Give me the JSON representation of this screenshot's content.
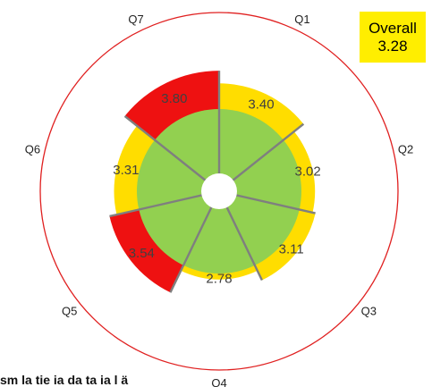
{
  "chart_data": {
    "type": "polar-area",
    "categories": [
      "Q1",
      "Q2",
      "Q3",
      "Q4",
      "Q5",
      "Q6",
      "Q7"
    ],
    "values": [
      3.4,
      3.02,
      3.11,
      2.78,
      3.54,
      3.31,
      3.8
    ],
    "value_labels": [
      "3.40",
      "3.02",
      "3.11",
      "2.78",
      "3.54",
      "3.31",
      "3.80"
    ],
    "segment_colors": [
      "#ffdd00",
      "#ffdd00",
      "#ffdd00",
      "#ffdd00",
      "#ee1111",
      "#ffdd00",
      "#ee1111"
    ],
    "inner_color": "#92d050",
    "outer_ring_color": "#e02020",
    "divider_color": "#7f7f7f"
  },
  "overall": {
    "label": "Overall",
    "value": "3.28"
  },
  "footer": {
    "text": "sm la tie ia da ta ia l ä"
  }
}
